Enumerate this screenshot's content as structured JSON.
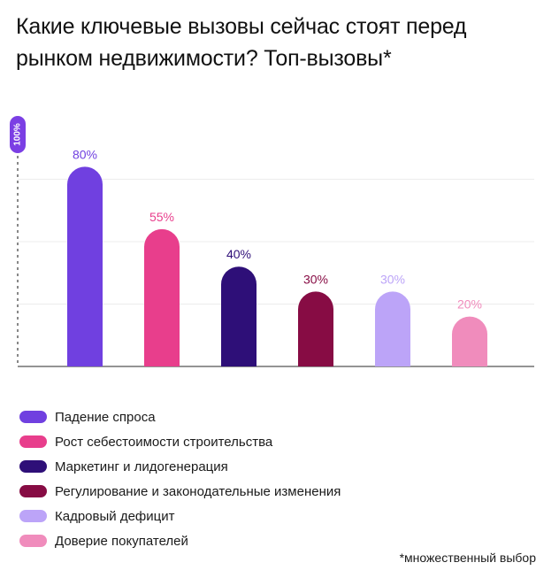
{
  "chart_data": {
    "type": "bar",
    "title": "Какие ключевые вызовы сейчас стоят перед рынком недвижимости? Топ-вызовы*",
    "categories": [
      "Падение спроса",
      "Рост себестоимости строительства",
      "Маркетинг и лидогенерация",
      "Регулирование и законодательные изменения",
      "Кадровый дефицит",
      "Доверие покупателей"
    ],
    "values": [
      80,
      55,
      40,
      30,
      30,
      20
    ],
    "value_labels": [
      "80%",
      "55%",
      "40%",
      "30%",
      "30%",
      "20%"
    ],
    "colors": [
      "#7040e0",
      "#e83e8c",
      "#2e0f78",
      "#870c44",
      "#bca4f8",
      "#f08cbc"
    ],
    "label_colors": [
      "#7040e0",
      "#e83e8c",
      "#2e0f78",
      "#870c44",
      "#bca4f8",
      "#f08cbc"
    ],
    "axis_max_label": "100%",
    "axis_badge_color": "#7b3fe4",
    "ylim": [
      0,
      100
    ],
    "grid": true,
    "legend_position": "bottom-left",
    "footnote": "*множественный выбор"
  }
}
